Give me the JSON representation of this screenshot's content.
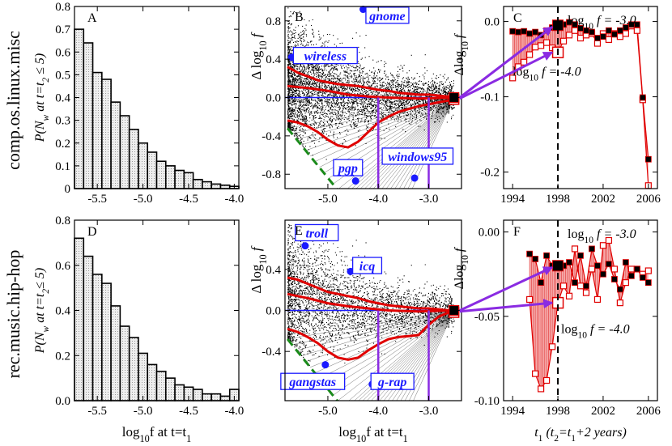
{
  "figure": {
    "row_labels": [
      "comp.os.linux.misc",
      "rec.music.hip-hop"
    ]
  },
  "chart_data": [
    {
      "panel": "A",
      "type": "bar",
      "row": "comp.os.linux.misc",
      "ylabel_main": "P(N",
      "ylabel_sub": "w",
      "ylabel_rest": " at t=t",
      "ylabel_sub2": "2",
      "ylabel_end": " ≤ 5)",
      "xlabel": "",
      "xlim": [
        -5.75,
        -3.95
      ],
      "ylim": [
        0,
        0.8
      ],
      "yticks": [
        "0",
        "0.1",
        "0.2",
        "0.3",
        "0.4",
        "0.5",
        "0.6",
        "0.7",
        "0.8"
      ],
      "xticks": [
        "-5.5",
        "-5.0",
        "-4.5",
        "-4.0"
      ],
      "bin_start": -5.75,
      "bin_width": 0.1,
      "values": [
        0.7,
        0.64,
        0.51,
        0.48,
        0.38,
        0.32,
        0.26,
        0.2,
        0.16,
        0.12,
        0.1,
        0.08,
        0.07,
        0.04,
        0.03,
        0.02,
        0.015,
        0.01
      ]
    },
    {
      "panel": "B",
      "type": "scatter",
      "row": "comp.os.linux.misc",
      "xlabel": "",
      "ylabel": "Δ log10 f",
      "xlim": [
        -5.85,
        -2.35
      ],
      "ylim": [
        -0.95,
        0.95
      ],
      "xticks": [
        "-5.0",
        "-4.0",
        "-3.0"
      ],
      "yticks": [
        "-0.8",
        "-0.4",
        "0.0",
        "0.4",
        "0.8"
      ],
      "upper_envelope": [
        [
          -5.8,
          0.32
        ],
        [
          -5.6,
          0.26
        ],
        [
          -5.4,
          0.22
        ],
        [
          -5.2,
          0.18
        ],
        [
          -5.0,
          0.16
        ],
        [
          -4.8,
          0.14
        ],
        [
          -4.6,
          0.13
        ],
        [
          -4.4,
          0.12
        ],
        [
          -4.2,
          0.1
        ],
        [
          -4.0,
          0.08
        ],
        [
          -3.8,
          0.07
        ],
        [
          -3.6,
          0.05
        ],
        [
          -3.4,
          0.04
        ],
        [
          -3.2,
          0.03
        ],
        [
          -3.0,
          0.03
        ],
        [
          -2.8,
          0.02
        ],
        [
          -2.6,
          0.01
        ],
        [
          -2.5,
          0.0
        ]
      ],
      "mean_curve": [
        [
          -5.8,
          0.12
        ],
        [
          -5.4,
          0.1
        ],
        [
          -5.0,
          0.07
        ],
        [
          -4.6,
          0.03
        ],
        [
          -4.2,
          0.01
        ],
        [
          -3.8,
          0.0
        ],
        [
          -3.2,
          -0.01
        ],
        [
          -2.5,
          0.0
        ]
      ],
      "lower_envelope": [
        [
          -5.8,
          -0.24
        ],
        [
          -5.6,
          -0.26
        ],
        [
          -5.4,
          -0.3
        ],
        [
          -5.2,
          -0.36
        ],
        [
          -5.0,
          -0.44
        ],
        [
          -4.8,
          -0.5
        ],
        [
          -4.6,
          -0.52
        ],
        [
          -4.4,
          -0.46
        ],
        [
          -4.2,
          -0.36
        ],
        [
          -4.0,
          -0.26
        ],
        [
          -3.8,
          -0.2
        ],
        [
          -3.6,
          -0.15
        ],
        [
          -3.4,
          -0.12
        ],
        [
          -3.2,
          -0.09
        ],
        [
          -3.0,
          -0.07
        ],
        [
          -2.8,
          -0.05
        ],
        [
          -2.6,
          -0.03
        ],
        [
          -2.5,
          -0.01
        ]
      ],
      "boundary": [
        [
          -5.8,
          -0.32
        ],
        [
          -4.75,
          -1.0
        ]
      ],
      "vlines": [
        -4.0,
        -3.0
      ],
      "end_markers": [
        [
          -2.5,
          0.0
        ],
        [
          -2.5,
          -0.02
        ]
      ],
      "highlights": [
        {
          "word": "gnome",
          "x": -4.3,
          "y": 0.92,
          "lx": -3.82,
          "ly": 0.85
        },
        {
          "word": "wireless",
          "x": -5.72,
          "y": 0.42,
          "lx": -5.05,
          "ly": 0.43
        },
        {
          "word": "pgp",
          "x": -4.45,
          "y": -0.87,
          "lx": -4.6,
          "ly": -0.74
        },
        {
          "word": "windows95",
          "x": -3.28,
          "y": -0.84,
          "lx": -3.22,
          "ly": -0.62
        }
      ]
    },
    {
      "panel": "C",
      "type": "line",
      "row": "comp.os.linux.misc",
      "ylabel": "Δlog10 f",
      "xlim": [
        1993.2,
        2006.8
      ],
      "ylim": [
        -0.222,
        0.02
      ],
      "xticks": [
        "1994",
        "1998",
        "2002",
        "2006"
      ],
      "yticks": [
        "-0.2",
        "-0.1",
        "0.0"
      ],
      "vline_year": 1998,
      "annotations": {
        "upper_base": "log",
        "upper_sub": "10",
        "upper_rest": "f = -3.0",
        "lower_base": "log",
        "lower_sub": "10",
        "lower_rest": "f = -4.0"
      },
      "series": [
        {
          "name": "log10 f = -3.0",
          "x": [
            1994.0,
            1994.5,
            1995.0,
            1995.5,
            1996.0,
            1996.5,
            1997.0,
            1997.5,
            1998.0,
            1998.5,
            1999.0,
            1999.5,
            2000.0,
            2000.5,
            2001.0,
            2001.5,
            2002.0,
            2002.5,
            2003.0,
            2003.5,
            2004.0,
            2004.5,
            2005.0,
            2005.5,
            2006.0
          ],
          "values": [
            -0.013,
            -0.014,
            -0.013,
            -0.016,
            -0.014,
            -0.018,
            -0.012,
            -0.008,
            -0.005,
            -0.004,
            -0.001,
            -0.004,
            -0.009,
            -0.012,
            -0.014,
            -0.022,
            -0.02,
            -0.012,
            -0.017,
            -0.012,
            -0.008,
            -0.004,
            -0.004,
            -0.101,
            -0.183
          ]
        },
        {
          "name": "log10 f = -4.0",
          "x": [
            1994.0,
            1994.5,
            1995.0,
            1995.5,
            1996.0,
            1996.5,
            1997.0,
            1997.5,
            1998.0,
            1998.5,
            1999.0,
            1999.5,
            2000.0,
            2000.5,
            2001.0,
            2001.5,
            2002.0,
            2002.5,
            2003.0,
            2003.5,
            2004.0,
            2004.5,
            2005.0,
            2005.5,
            2006.0
          ],
          "values": [
            -0.075,
            -0.06,
            -0.054,
            -0.044,
            -0.034,
            -0.032,
            -0.028,
            -0.035,
            -0.041,
            -0.026,
            -0.018,
            -0.012,
            -0.022,
            -0.018,
            -0.016,
            -0.029,
            -0.016,
            -0.024,
            -0.016,
            -0.02,
            -0.016,
            -0.006,
            -0.012,
            -0.104,
            -0.218
          ]
        }
      ]
    },
    {
      "panel": "D",
      "type": "bar",
      "row": "rec.music.hip-hop",
      "ylabel_main": "P(N",
      "ylabel_sub": "w",
      "ylabel_rest": " at t=t",
      "ylabel_sub2": "2",
      "ylabel_end": "≤ 5)",
      "xlabel_base": "log",
      "xlabel_sub": "10",
      "xlabel_rest": "f  at  t=t",
      "xlabel_sub2": "1",
      "xlim": [
        -5.75,
        -3.95
      ],
      "ylim": [
        0,
        0.8
      ],
      "yticks": [
        "0.0",
        "0.2",
        "0.4",
        "0.6",
        "0.8"
      ],
      "xticks": [
        "-5.5",
        "-5.0",
        "-4.5",
        "-4.0"
      ],
      "bin_start": -5.75,
      "bin_width": 0.1,
      "values": [
        0.72,
        0.64,
        0.56,
        0.52,
        0.42,
        0.33,
        0.28,
        0.21,
        0.16,
        0.13,
        0.1,
        0.07,
        0.06,
        0.05,
        0.03,
        0.03,
        0.02,
        0.05
      ]
    },
    {
      "panel": "E",
      "type": "scatter",
      "row": "rec.music.hip-hop",
      "xlabel_base": "log",
      "xlabel_sub": "10",
      "xlabel_rest": "f  at  t=t",
      "xlabel_sub2": "1",
      "ylabel": "Δ log10 f",
      "xlim": [
        -5.85,
        -2.35
      ],
      "ylim": [
        -0.88,
        0.88
      ],
      "xticks": [
        "-5.0",
        "-4.0",
        "-3.0"
      ],
      "yticks": [
        "-0.4",
        "0.0",
        "0.4"
      ],
      "upper_envelope": [
        [
          -5.8,
          0.32
        ],
        [
          -5.6,
          0.3
        ],
        [
          -5.4,
          0.26
        ],
        [
          -5.2,
          0.22
        ],
        [
          -5.0,
          0.18
        ],
        [
          -4.8,
          0.16
        ],
        [
          -4.6,
          0.14
        ],
        [
          -4.4,
          0.12
        ],
        [
          -4.2,
          0.09
        ],
        [
          -4.0,
          0.07
        ],
        [
          -3.8,
          0.05
        ],
        [
          -3.6,
          0.04
        ],
        [
          -3.4,
          0.03
        ],
        [
          -3.2,
          0.02
        ],
        [
          -3.0,
          0.02
        ],
        [
          -2.8,
          0.01
        ],
        [
          -2.6,
          0.0
        ],
        [
          -2.5,
          0.0
        ]
      ],
      "mean_curve": [
        [
          -5.8,
          0.16
        ],
        [
          -5.4,
          0.12
        ],
        [
          -5.0,
          0.07
        ],
        [
          -4.6,
          0.04
        ],
        [
          -4.2,
          0.02
        ],
        [
          -3.8,
          0.0
        ],
        [
          -3.2,
          -0.01
        ],
        [
          -2.5,
          0.0
        ]
      ],
      "lower_envelope": [
        [
          -5.8,
          -0.18
        ],
        [
          -5.6,
          -0.21
        ],
        [
          -5.4,
          -0.26
        ],
        [
          -5.2,
          -0.32
        ],
        [
          -5.0,
          -0.4
        ],
        [
          -4.8,
          -0.46
        ],
        [
          -4.6,
          -0.48
        ],
        [
          -4.4,
          -0.46
        ],
        [
          -4.2,
          -0.39
        ],
        [
          -4.0,
          -0.33
        ],
        [
          -3.8,
          -0.28
        ],
        [
          -3.6,
          -0.26
        ],
        [
          -3.4,
          -0.25
        ],
        [
          -3.2,
          -0.24
        ],
        [
          -3.0,
          -0.14
        ],
        [
          -2.8,
          -0.06
        ],
        [
          -2.6,
          -0.02
        ],
        [
          -2.5,
          -0.01
        ]
      ],
      "boundary": [
        [
          -5.8,
          -0.28
        ],
        [
          -4.7,
          -0.95
        ]
      ],
      "vlines": [
        -4.0,
        -3.0
      ],
      "end_markers": [
        [
          -2.5,
          0.0
        ],
        [
          -2.5,
          -0.02
        ]
      ],
      "highlights": [
        {
          "word": "troll",
          "x": -5.45,
          "y": 0.63,
          "lx": -5.22,
          "ly": 0.75
        },
        {
          "word": "icq",
          "x": -4.55,
          "y": 0.38,
          "lx": -4.22,
          "ly": 0.43
        },
        {
          "word": "gangstas",
          "x": -5.05,
          "y": -0.53,
          "lx": -5.3,
          "ly": -0.7
        },
        {
          "word": "g-rap",
          "x": -4.12,
          "y": -0.72,
          "lx": -3.72,
          "ly": -0.7
        }
      ]
    },
    {
      "panel": "F",
      "type": "line",
      "row": "rec.music.hip-hop",
      "ylabel": "Δlog10 f",
      "xlabel_main": "t",
      "xlabel_sub": "1",
      "xlabel_rest": " (t",
      "xlabel_sub2": "2",
      "xlabel_end": "=t",
      "xlabel_sub3": "1",
      "xlabel_tail": "+2 years)",
      "xlim": [
        1993.2,
        2006.8
      ],
      "ylim": [
        -0.1,
        0.007
      ],
      "xticks": [
        "1994",
        "1998",
        "2002",
        "2006"
      ],
      "yticks": [
        "-0.10",
        "-0.05",
        "0.00"
      ],
      "vline_year": 1998,
      "annotations": {
        "upper_base": "log",
        "upper_sub": "10",
        "upper_rest": "f = -3.0",
        "lower_base": "log",
        "lower_sub": "10",
        "lower_rest": "f = -4.0"
      },
      "series": [
        {
          "name": "log10 f = -3.0",
          "x": [
            1995.5,
            1996.0,
            1996.5,
            1997.0,
            1997.5,
            1998.0,
            1998.5,
            1999.0,
            1999.5,
            2000.0,
            2000.5,
            2001.0,
            2001.5,
            2002.0,
            2002.5,
            2003.0,
            2003.5,
            2004.0,
            2004.5,
            2005.0,
            2005.5,
            2006.0
          ],
          "values": [
            -0.013,
            -0.016,
            -0.03,
            -0.014,
            -0.02,
            -0.02,
            -0.02,
            -0.018,
            -0.03,
            -0.014,
            -0.032,
            -0.01,
            -0.02,
            -0.025,
            -0.019,
            -0.028,
            -0.034,
            -0.018,
            -0.026,
            -0.022,
            -0.027,
            -0.03
          ]
        },
        {
          "name": "log10 f = -4.0",
          "x": [
            1995.5,
            1996.0,
            1996.5,
            1997.0,
            1997.5,
            1998.0,
            1998.5,
            1999.0,
            1999.5,
            2000.0,
            2000.5,
            2001.0,
            2001.5,
            2002.0,
            2002.5,
            2003.0,
            2003.5,
            2004.0,
            2004.5,
            2005.0,
            2005.5,
            2006.0
          ],
          "values": [
            -0.04,
            -0.084,
            -0.093,
            -0.088,
            -0.068,
            -0.042,
            -0.032,
            -0.038,
            -0.01,
            -0.032,
            -0.036,
            -0.022,
            -0.04,
            -0.008,
            -0.005,
            -0.022,
            -0.042,
            -0.03,
            -0.022,
            -0.022,
            -0.025,
            -0.023
          ]
        }
      ]
    }
  ]
}
